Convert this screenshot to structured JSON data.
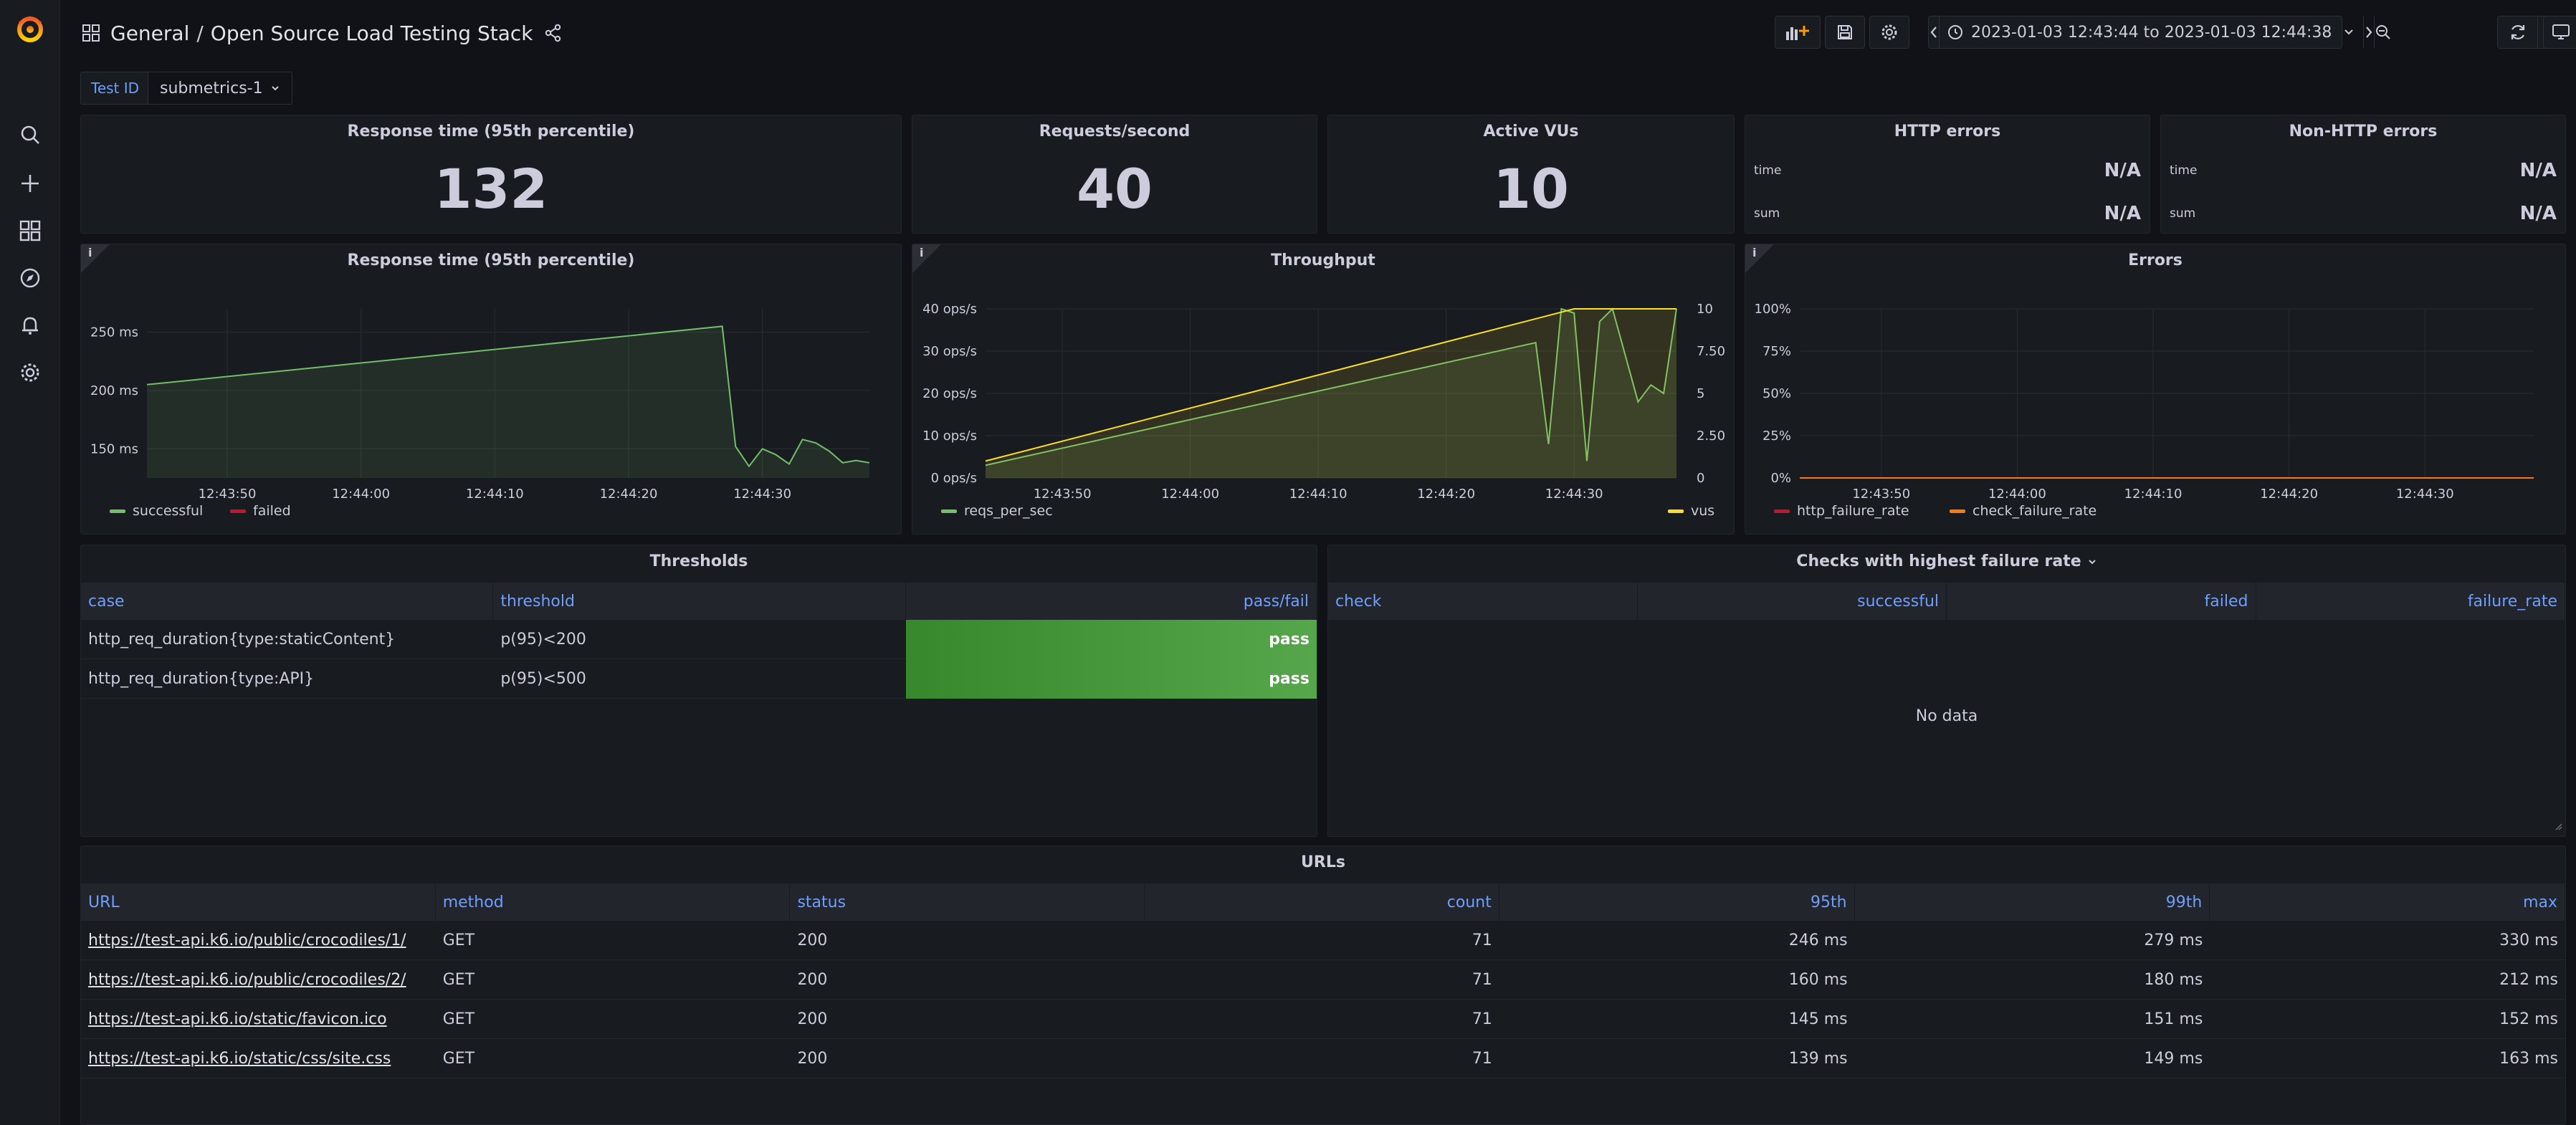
{
  "breadcrumb": {
    "folder": "General",
    "separator": "/",
    "dashboard": "Open Source Load Testing Stack"
  },
  "time_range": {
    "text": "2023-01-03 12:43:44 to 2023-01-03 12:44:38"
  },
  "variables": {
    "label": "Test ID",
    "value": "submetrics-1"
  },
  "stats": {
    "response_time": {
      "title": "Response time (95th percentile)",
      "value": "132"
    },
    "requests": {
      "title": "Requests/second",
      "value": "40"
    },
    "vus": {
      "title": "Active VUs",
      "value": "10"
    },
    "http_errors": {
      "title": "HTTP errors",
      "rows": [
        {
          "k": "time",
          "v": "N/A"
        },
        {
          "k": "sum",
          "v": "N/A"
        }
      ]
    },
    "nonhttp_errors": {
      "title": "Non-HTTP errors",
      "rows": [
        {
          "k": "time",
          "v": "N/A"
        },
        {
          "k": "sum",
          "v": "N/A"
        }
      ]
    }
  },
  "charts": {
    "response": {
      "title": "Response time (95th percentile)",
      "info": "i"
    },
    "throughput": {
      "title": "Throughput",
      "info": "i"
    },
    "errors": {
      "title": "Errors",
      "info": "i"
    }
  },
  "chart_data": [
    {
      "type": "area",
      "title": "Response time (95th percentile)",
      "x_ticks": [
        "12:43:50",
        "12:44:00",
        "12:44:10",
        "12:44:20",
        "12:44:30"
      ],
      "y_ticks": [
        "150 ms",
        "200 ms",
        "250 ms"
      ],
      "ylim": [
        125,
        270
      ],
      "xlim": [
        "12:43:44",
        "12:44:38"
      ],
      "series": [
        {
          "name": "successful",
          "color": "#73bf69",
          "x": [
            "12:43:44",
            "12:44:27",
            "12:44:28",
            "12:44:29",
            "12:44:30",
            "12:44:31",
            "12:44:32",
            "12:44:33",
            "12:44:34",
            "12:44:35",
            "12:44:36",
            "12:44:37",
            "12:44:38"
          ],
          "values": [
            205,
            255,
            152,
            135,
            150,
            145,
            137,
            158,
            155,
            148,
            138,
            140,
            138
          ]
        },
        {
          "name": "failed",
          "color": "#c4162a",
          "x": [],
          "values": []
        }
      ]
    },
    {
      "type": "line",
      "title": "Throughput",
      "x_ticks": [
        "12:43:50",
        "12:44:00",
        "12:44:10",
        "12:44:20",
        "12:44:30"
      ],
      "y_ticks": [
        "0 ops/s",
        "10 ops/s",
        "20 ops/s",
        "30 ops/s",
        "40 ops/s"
      ],
      "y2_ticks": [
        "0",
        "2.50",
        "5",
        "7.50",
        "10"
      ],
      "ylim": [
        0,
        40
      ],
      "y2lim": [
        0,
        10
      ],
      "series": [
        {
          "name": "reqs_per_sec",
          "color": "#73bf69",
          "axis": "left",
          "x": [
            "12:43:44",
            "12:44:27",
            "12:44:28",
            "12:44:29",
            "12:44:30",
            "12:44:31",
            "12:44:32",
            "12:44:33",
            "12:44:34",
            "12:44:35",
            "12:44:36",
            "12:44:37",
            "12:44:38"
          ],
          "values": [
            3,
            32,
            8,
            40,
            39,
            4,
            37,
            40,
            29,
            18,
            22,
            20,
            40
          ]
        },
        {
          "name": "vus",
          "color": "#fade2a",
          "axis": "right",
          "x": [
            "12:43:44",
            "12:44:30",
            "12:44:38"
          ],
          "values": [
            1,
            10,
            10
          ]
        }
      ]
    },
    {
      "type": "line",
      "title": "Errors",
      "x_ticks": [
        "12:43:50",
        "12:44:00",
        "12:44:10",
        "12:44:20",
        "12:44:30"
      ],
      "y_ticks": [
        "0%",
        "25%",
        "50%",
        "75%",
        "100%"
      ],
      "ylim": [
        0,
        100
      ],
      "series": [
        {
          "name": "http_failure_rate",
          "color": "#c4162a",
          "x": [
            "12:43:44",
            "12:44:38"
          ],
          "values": [
            0,
            0
          ]
        },
        {
          "name": "check_failure_rate",
          "color": "#ff780a",
          "x": [
            "12:43:44",
            "12:44:38"
          ],
          "values": [
            0,
            0
          ]
        }
      ]
    }
  ],
  "thresholds": {
    "title": "Thresholds",
    "columns": [
      "case",
      "threshold",
      "pass/fail"
    ],
    "rows": [
      {
        "case": "http_req_duration{type:staticContent}",
        "threshold": "p(95)<200",
        "result": "pass"
      },
      {
        "case": "http_req_duration{type:API}",
        "threshold": "p(95)<500",
        "result": "pass"
      }
    ]
  },
  "checks": {
    "title": "Checks with highest failure rate",
    "columns": [
      "check",
      "successful",
      "failed",
      "failure_rate"
    ],
    "empty": "No data"
  },
  "urls": {
    "title": "URLs",
    "columns": [
      "URL",
      "method",
      "status",
      "count",
      "95th",
      "99th",
      "max"
    ],
    "rows": [
      {
        "url": "https://test-api.k6.io/public/crocodiles/1/",
        "method": "GET",
        "status": "200",
        "count": "71",
        "p95": "246 ms",
        "p99": "279 ms",
        "max": "330 ms"
      },
      {
        "url": "https://test-api.k6.io/public/crocodiles/2/",
        "method": "GET",
        "status": "200",
        "count": "71",
        "p95": "160 ms",
        "p99": "180 ms",
        "max": "212 ms"
      },
      {
        "url": "https://test-api.k6.io/static/favicon.ico",
        "method": "GET",
        "status": "200",
        "count": "71",
        "p95": "145 ms",
        "p99": "151 ms",
        "max": "152 ms"
      },
      {
        "url": "https://test-api.k6.io/static/css/site.css",
        "method": "GET",
        "status": "200",
        "count": "71",
        "p95": "139 ms",
        "p99": "149 ms",
        "max": "163 ms"
      }
    ]
  }
}
